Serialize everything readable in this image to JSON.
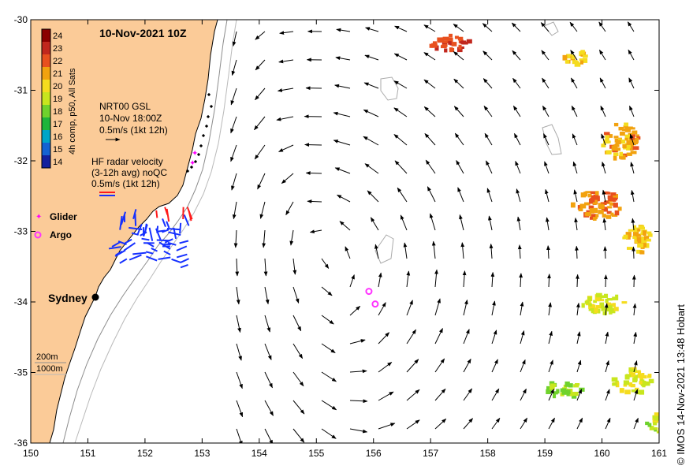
{
  "title": "10-Nov-2021 10Z",
  "colorbar": {
    "label": "4h comp, p50, All Sats",
    "ticks": [
      "24",
      "23",
      "22",
      "21",
      "20",
      "19",
      "18",
      "17",
      "16",
      "15",
      "14"
    ],
    "colors": [
      "#8b0000",
      "#c1271d",
      "#e8501e",
      "#f2a20f",
      "#f5dc1e",
      "#c8e61e",
      "#6fd22c",
      "#1fb43a",
      "#00a5c8",
      "#1463d2",
      "#12209e"
    ]
  },
  "legend": {
    "nrt_lines": [
      "NRT00 GSL",
      "10-Nov 18:00Z",
      "0.5m/s (1kt 12h)"
    ],
    "hf_lines": [
      "HF radar velocity",
      "(3-12h avg) noQC",
      "0.5m/s (1kt 12h)"
    ],
    "glider": "Glider",
    "argo": "Argo",
    "isobath_200": "200m",
    "isobath_1000": "1000m"
  },
  "city": "Sydney",
  "credit": "© IMOS 14-Nov-2021 13:48 Hobart",
  "axes": {
    "x_ticks": [
      "150",
      "151",
      "152",
      "153",
      "154",
      "155",
      "156",
      "157",
      "158",
      "159",
      "160",
      "161"
    ],
    "y_ticks": [
      "-30",
      "-31",
      "-32",
      "-33",
      "-34",
      "-35",
      "-36"
    ]
  },
  "colors": {
    "land": "#fbcb98",
    "glider": "#ff00ff",
    "argo": "#ff33ff",
    "hf_blue": "#1530ff",
    "hf_red": "#ff1a1a"
  },
  "map_data": {
    "lon_range": [
      150,
      161
    ],
    "lat_range": [
      -36,
      -30
    ],
    "sydney": [
      151.2,
      -33.87
    ],
    "gliders": [
      [
        152.87,
        -31.88
      ],
      [
        152.83,
        -32.02
      ]
    ],
    "argo": [
      [
        155.92,
        -33.85
      ],
      [
        156.03,
        -34.03
      ]
    ],
    "eddy_center": [
      155.05,
      -33.6
    ],
    "sst_patches": [
      {
        "center": [
          157.3,
          -30.3
        ],
        "size": [
          0.7,
          0.25
        ],
        "value": 22.5
      },
      {
        "center": [
          159.5,
          -30.5
        ],
        "size": [
          0.4,
          0.25
        ],
        "value": 20.5
      },
      {
        "center": [
          160.3,
          -31.7
        ],
        "size": [
          0.7,
          0.5
        ],
        "value": 21.0
      },
      {
        "center": [
          159.9,
          -32.6
        ],
        "size": [
          0.9,
          0.4
        ],
        "value": 21.5
      },
      {
        "center": [
          160.6,
          -33.1
        ],
        "size": [
          0.5,
          0.4
        ],
        "value": 20.5
      },
      {
        "center": [
          160.0,
          -34.0
        ],
        "size": [
          0.8,
          0.3
        ],
        "value": 19.5
      },
      {
        "center": [
          159.3,
          -35.2
        ],
        "size": [
          0.6,
          0.25
        ],
        "value": 18.5
      },
      {
        "center": [
          160.5,
          -35.1
        ],
        "size": [
          0.7,
          0.35
        ],
        "value": 19.5
      },
      {
        "center": [
          160.9,
          -35.7
        ],
        "size": [
          0.3,
          0.3
        ],
        "value": 19.0
      }
    ]
  }
}
